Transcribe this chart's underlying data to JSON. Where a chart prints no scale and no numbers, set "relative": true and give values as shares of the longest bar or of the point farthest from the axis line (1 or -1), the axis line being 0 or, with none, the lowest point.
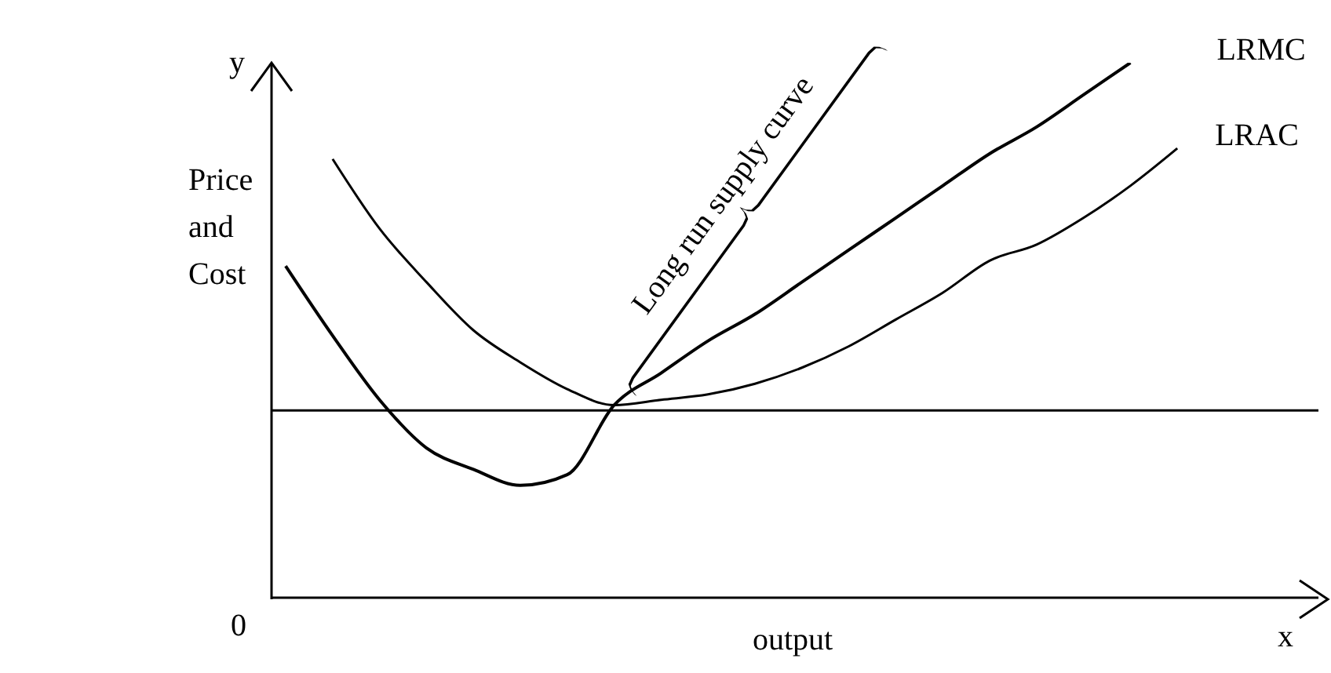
{
  "chart_data": {
    "type": "line",
    "relative": true,
    "xlabel": "output",
    "ylabel": "Price and Cost",
    "categories": [
      null,
      null,
      null,
      null,
      null,
      null,
      null,
      null,
      null,
      null,
      null,
      null,
      null,
      null,
      null,
      null,
      null,
      null,
      null,
      null,
      null
    ],
    "series": [
      {
        "name": "LRMC",
        "color": "#000000",
        "values": [
          0.62,
          0.49,
          0.37,
          0.28,
          0.24,
          0.21,
          0.23,
          0.36,
          0.42,
          0.48,
          0.53,
          0.59,
          0.65,
          0.71,
          0.77,
          0.83,
          0.88,
          0.94,
          1,
          null,
          null
        ]
      },
      {
        "name": "LRAC",
        "color": "#000000",
        "values": [
          null,
          0.82,
          0.69,
          0.59,
          0.5,
          0.44,
          0.39,
          0.36,
          0.37,
          0.38,
          0.4,
          0.43,
          0.47,
          0.52,
          0.57,
          0.63,
          0.66,
          0.71,
          0.77,
          0.84,
          null
        ]
      }
    ],
    "ref_lines": [
      {
        "axis": "y",
        "value": 0.35,
        "color": "#000000"
      }
    ],
    "annotations": [
      "y",
      "x",
      "0",
      "Long run supply curve"
    ],
    "grid": false,
    "legend": false,
    "marker": "none",
    "line_style": "solid"
  }
}
